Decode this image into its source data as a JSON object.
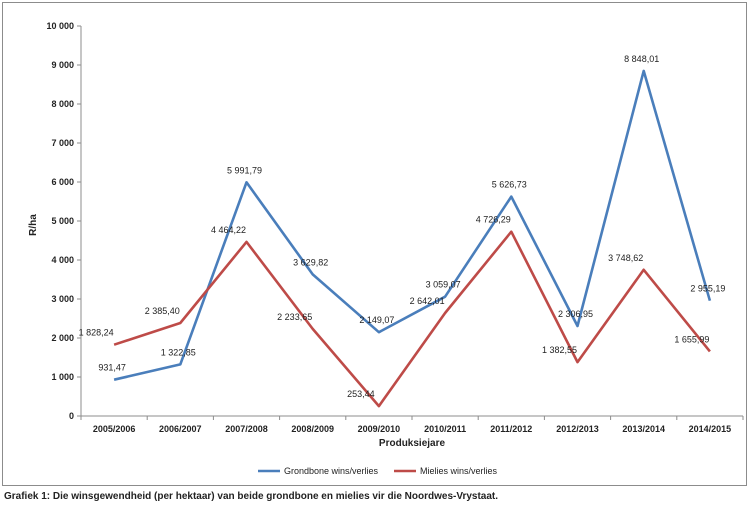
{
  "chart_data": {
    "type": "line",
    "categories": [
      "2005/2006",
      "2006/2007",
      "2007/2008",
      "2008/2009",
      "2009/2010",
      "2010/2011",
      "2011/2012",
      "2012/2013",
      "2013/2014",
      "2014/2015"
    ],
    "series": [
      {
        "name": "Grondbone wins/verlies",
        "color": "#4a7ebb",
        "values": [
          931.47,
          1322.85,
          5991.79,
          3629.82,
          2149.07,
          3059.07,
          5626.73,
          2306.95,
          8848.01,
          2955.19
        ],
        "labels": [
          "931,47",
          "1 322,85",
          "5 991,79",
          "3 629,82",
          "2 149,07",
          "3 059,07",
          "5 626,73",
          "2 306,95",
          "8 848,01",
          "2 955,19"
        ]
      },
      {
        "name": "Mielies wins/verlies",
        "color": "#be4b48",
        "values": [
          1828.24,
          2385.4,
          4464.22,
          2233.65,
          253.44,
          2642.01,
          4726.29,
          1382.55,
          3748.62,
          1655.99
        ],
        "labels": [
          "1 828,24",
          "2 385,40",
          "4 464,22",
          "2 233,65",
          "253,44",
          "2 642,01",
          "4 726,29",
          "1 382,55",
          "3 748,62",
          "1 655,99"
        ]
      }
    ],
    "yticks": [
      "0",
      "1 000",
      "2 000",
      "3 000",
      "4 000",
      "5 000",
      "6 000",
      "7 000",
      "8 000",
      "9 000",
      "10 000"
    ],
    "ylim": [
      0,
      10000
    ],
    "ylabel": "R/ha",
    "xlabel": "Produksiejare",
    "legend_position": "bottom",
    "grid": false
  },
  "caption": "Grafiek 1: Die winsgewendheid (per hektaar) van beide grondbone en mielies vir die Noordwes-Vrystaat."
}
